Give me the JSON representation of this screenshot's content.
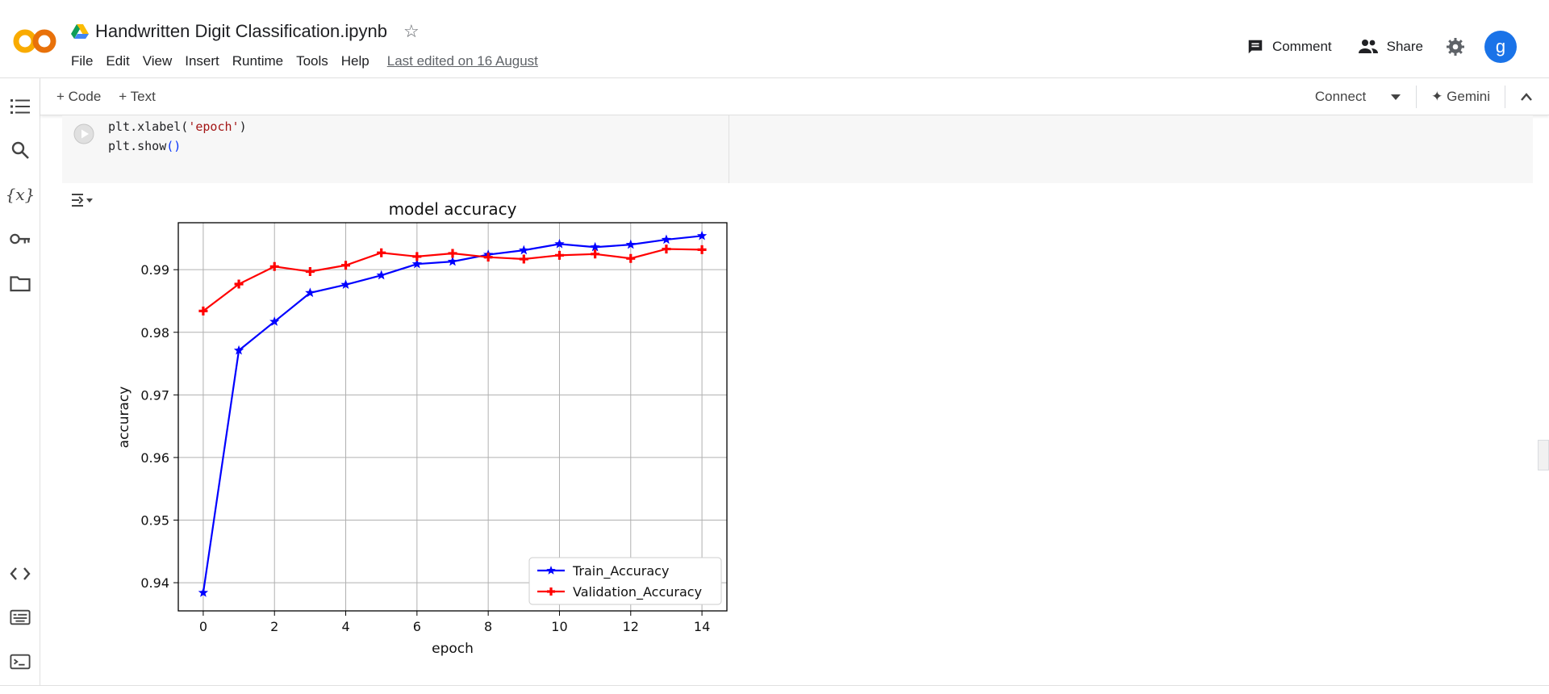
{
  "header": {
    "title": "Handwritten Digit Classification.ipynb",
    "menu": [
      "File",
      "Edit",
      "View",
      "Insert",
      "Runtime",
      "Tools",
      "Help"
    ],
    "last_edited": "Last edited on 16 August",
    "comment_label": "Comment",
    "share_label": "Share",
    "avatar_letter": "g"
  },
  "toolbar": {
    "add_code": "+ Code",
    "add_text": "+ Text",
    "connect": "Connect",
    "gemini": "✦ Gemini"
  },
  "sidebar": {
    "icons": [
      "toc-icon",
      "search-icon",
      "variables-icon",
      "key-icon",
      "folder-icon",
      "code-snippets-icon",
      "command-palette-icon",
      "terminal-icon"
    ]
  },
  "cell": {
    "line1_prefix": "plt.xlabel(",
    "line1_arg": "'epoch'",
    "line1_suffix": ")",
    "line2_prefix": "plt.show",
    "line2_parens": "()"
  },
  "chart_data": {
    "type": "line",
    "title": "model accuracy",
    "xlabel": "epoch",
    "ylabel": "accuracy",
    "x": [
      0,
      1,
      2,
      3,
      4,
      5,
      6,
      7,
      8,
      9,
      10,
      11,
      12,
      13,
      14
    ],
    "xlim": [
      -0.7,
      14.7
    ],
    "ylim": [
      0.9355,
      0.9975
    ],
    "xticks": [
      0,
      2,
      4,
      6,
      8,
      10,
      12,
      14
    ],
    "yticks": [
      0.94,
      0.95,
      0.96,
      0.97,
      0.98,
      0.99
    ],
    "ytick_labels": [
      "0.94",
      "0.95",
      "0.96",
      "0.97",
      "0.98",
      "0.99"
    ],
    "grid": true,
    "legend": "lower-right",
    "series": [
      {
        "name": "Train_Accuracy",
        "color": "#0000ff",
        "marker": "star",
        "values": [
          0.9384,
          0.9771,
          0.9817,
          0.9863,
          0.9876,
          0.9891,
          0.9909,
          0.9913,
          0.9924,
          0.9931,
          0.9941,
          0.9936,
          0.994,
          0.9948,
          0.9954
        ]
      },
      {
        "name": "Validation_Accuracy",
        "color": "#ff0000",
        "marker": "plus",
        "values": [
          0.9834,
          0.9877,
          0.9905,
          0.9897,
          0.9907,
          0.9927,
          0.9921,
          0.9926,
          0.992,
          0.9917,
          0.9923,
          0.9925,
          0.9918,
          0.9933,
          0.9932
        ]
      }
    ]
  }
}
